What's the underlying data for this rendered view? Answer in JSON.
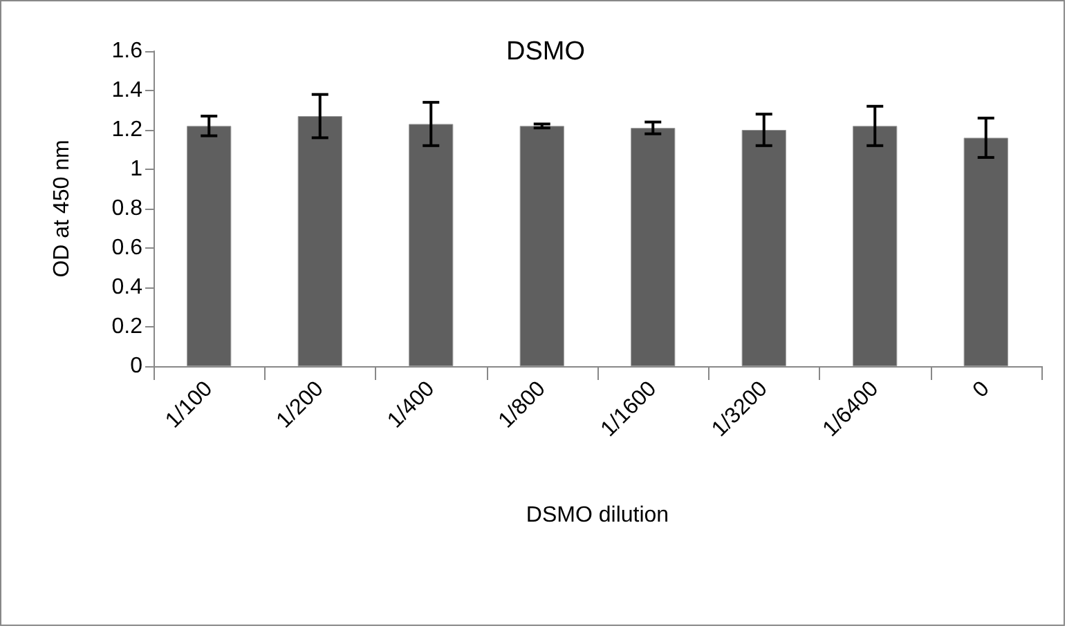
{
  "chart_data": {
    "type": "bar",
    "title": "DSMO",
    "xlabel": "DSMO dilution",
    "ylabel": "OD at 450 nm",
    "categories": [
      "1/100",
      "1/200",
      "1/400",
      "1/800",
      "1/1600",
      "1/3200",
      "1/6400",
      "0"
    ],
    "values": [
      1.22,
      1.27,
      1.23,
      1.22,
      1.21,
      1.2,
      1.22,
      1.16
    ],
    "errors": [
      0.05,
      0.11,
      0.11,
      0.01,
      0.03,
      0.08,
      0.1,
      0.1
    ],
    "color": "#5f5f5f",
    "ylim": [
      0,
      1.6
    ],
    "yticks": [
      0,
      0.2,
      0.4,
      0.6,
      0.8,
      1,
      1.2,
      1.4,
      1.6
    ],
    "grid": false
  }
}
